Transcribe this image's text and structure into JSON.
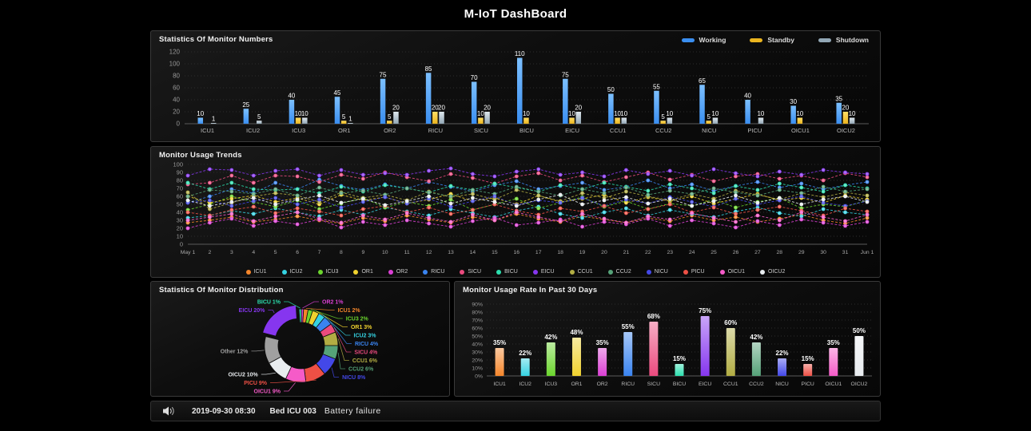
{
  "page_title": "M-IoT DashBoard",
  "chart_data": [
    {
      "type": "bar",
      "title": "Statistics Of Monitor Numbers",
      "ylim": [
        0,
        120
      ],
      "y_ticks": [
        0,
        20,
        40,
        60,
        80,
        100,
        120
      ],
      "grid": true,
      "legend_position": "top-right",
      "categories": [
        "ICU1",
        "ICU2",
        "ICU3",
        "OR1",
        "OR2",
        "RICU",
        "SICU",
        "BICU",
        "EICU",
        "CCU1",
        "CCU2",
        "NICU",
        "PICU",
        "OICU1",
        "OICU2"
      ],
      "series": [
        {
          "name": "Working",
          "color": "#3a8ef0",
          "color_light": "#7cc0ff",
          "values": [
            10,
            25,
            40,
            45,
            75,
            85,
            70,
            110,
            75,
            50,
            55,
            65,
            40,
            30,
            35
          ]
        },
        {
          "name": "Standby",
          "color": "#eab41f",
          "color_light": "#ffdf66",
          "values": [
            0,
            0,
            10,
            5,
            5,
            20,
            10,
            10,
            10,
            10,
            5,
            5,
            0,
            10,
            20
          ]
        },
        {
          "name": "Shutdown",
          "color": "#92a7b5",
          "color_light": "#dfe8ee",
          "values": [
            1,
            5,
            10,
            1,
            20,
            20,
            20,
            0,
            20,
            10,
            10,
            10,
            10,
            0,
            10
          ]
        }
      ]
    },
    {
      "type": "line",
      "title": "Monitor Usage Trends",
      "ylim": [
        0,
        100
      ],
      "y_ticks": [
        0,
        10,
        20,
        30,
        40,
        50,
        60,
        70,
        80,
        90,
        100
      ],
      "grid": true,
      "legend_position": "bottom",
      "x_labels": [
        "May 1",
        "2",
        "3",
        "4",
        "5",
        "6",
        "7",
        "8",
        "9",
        "10",
        "11",
        "12",
        "13",
        "14",
        "15",
        "16",
        "17",
        "18",
        "19",
        "20",
        "21",
        "22",
        "23",
        "24",
        "25",
        "26",
        "27",
        "28",
        "29",
        "30",
        "31",
        "Jun 1"
      ],
      "series": [
        {
          "name": "ICU1",
          "color": "#f5862b",
          "values": [
            27,
            30,
            34,
            28,
            31,
            35,
            30,
            26,
            33,
            29,
            36,
            31,
            27,
            34,
            30,
            38,
            32,
            28,
            35,
            31,
            27,
            33,
            29,
            36,
            30,
            34,
            28,
            32,
            37,
            30,
            26,
            33
          ]
        },
        {
          "name": "ICU2",
          "color": "#35d2e2",
          "values": [
            33,
            36,
            42,
            38,
            45,
            40,
            35,
            43,
            37,
            46,
            41,
            36,
            44,
            39,
            34,
            42,
            47,
            38,
            33,
            40,
            45,
            36,
            43,
            38,
            34,
            41,
            46,
            39,
            35,
            44,
            40,
            37
          ]
        },
        {
          "name": "ICU3",
          "color": "#6bd52d",
          "values": [
            43,
            50,
            60,
            53,
            47,
            55,
            44,
            51,
            58,
            46,
            53,
            48,
            56,
            43,
            50,
            57,
            45,
            52,
            59,
            47,
            54,
            44,
            51,
            48,
            56,
            46,
            53,
            58,
            45,
            50,
            47,
            55
          ]
        },
        {
          "name": "OR1",
          "color": "#f0d22e",
          "values": [
            60,
            52,
            57,
            61,
            53,
            58,
            50,
            62,
            55,
            59,
            51,
            56,
            63,
            54,
            58,
            50,
            61,
            53,
            57,
            62,
            52,
            59,
            54,
            60,
            51,
            57,
            63,
            55,
            58,
            52,
            61,
            56
          ]
        },
        {
          "name": "OR2",
          "color": "#db3fd4",
          "values": [
            20,
            27,
            32,
            23,
            29,
            25,
            31,
            21,
            28,
            24,
            30,
            26,
            22,
            29,
            33,
            24,
            27,
            31,
            22,
            28,
            25,
            32,
            23,
            30,
            26,
            21,
            29,
            24,
            31,
            27,
            23,
            28
          ]
        },
        {
          "name": "RICU",
          "color": "#3a84f0",
          "values": [
            52,
            60,
            69,
            64,
            77,
            69,
            81,
            73,
            68,
            75,
            70,
            78,
            72,
            66,
            74,
            79,
            69,
            73,
            77,
            68,
            72,
            80,
            70,
            75,
            67,
            73,
            78,
            71,
            76,
            69,
            74,
            78
          ]
        },
        {
          "name": "SICU",
          "color": "#ea4a7e",
          "values": [
            75,
            77,
            86,
            77,
            86,
            85,
            78,
            87,
            82,
            90,
            84,
            79,
            88,
            83,
            76,
            85,
            89,
            80,
            86,
            78,
            84,
            90,
            81,
            87,
            79,
            85,
            88,
            82,
            86,
            80,
            89,
            84
          ]
        },
        {
          "name": "BICU",
          "color": "#2cdfae",
          "values": [
            77,
            69,
            77,
            69,
            68,
            69,
            64,
            72,
            66,
            74,
            70,
            65,
            73,
            68,
            76,
            71,
            66,
            74,
            69,
            77,
            72,
            67,
            75,
            70,
            64,
            73,
            68,
            76,
            71,
            66,
            74,
            70
          ]
        },
        {
          "name": "EICU",
          "color": "#8636ef",
          "values": [
            86,
            94,
            93,
            86,
            92,
            94,
            86,
            93,
            87,
            89,
            87,
            92,
            95,
            88,
            85,
            91,
            94,
            87,
            90,
            85,
            93,
            88,
            92,
            86,
            94,
            89,
            85,
            91,
            87,
            93,
            90,
            88
          ]
        },
        {
          "name": "CCU1",
          "color": "#b2ad43",
          "values": [
            65,
            44,
            52,
            60,
            64,
            61,
            53,
            65,
            58,
            62,
            55,
            66,
            59,
            63,
            56,
            68,
            61,
            54,
            64,
            58,
            66,
            60,
            55,
            63,
            57,
            67,
            62,
            56,
            64,
            59,
            65,
            61
          ]
        },
        {
          "name": "CCU2",
          "color": "#55a278",
          "values": [
            60,
            68,
            66,
            63,
            69,
            61,
            71,
            64,
            67,
            62,
            70,
            65,
            60,
            68,
            63,
            72,
            66,
            61,
            69,
            64,
            71,
            62,
            67,
            63,
            70,
            65,
            61,
            68,
            64,
            72,
            66,
            69
          ]
        },
        {
          "name": "NICU",
          "color": "#4348e8",
          "values": [
            52,
            55,
            48,
            54,
            58,
            50,
            56,
            46,
            53,
            59,
            51,
            57,
            47,
            54,
            60,
            49,
            55,
            52,
            58,
            48,
            56,
            51,
            59,
            53,
            47,
            57,
            50,
            55,
            60,
            52,
            48,
            54
          ]
        },
        {
          "name": "PICU",
          "color": "#ee5045",
          "values": [
            40,
            36,
            43,
            47,
            39,
            45,
            41,
            36,
            44,
            48,
            40,
            46,
            38,
            43,
            50,
            42,
            37,
            45,
            41,
            48,
            39,
            44,
            50,
            40,
            46,
            38,
            43,
            47,
            42,
            36,
            45,
            41
          ]
        },
        {
          "name": "OICU1",
          "color": "#f55bc8",
          "values": [
            30,
            34,
            38,
            29,
            35,
            40,
            32,
            27,
            36,
            31,
            39,
            33,
            28,
            37,
            30,
            40,
            34,
            29,
            38,
            32,
            27,
            35,
            31,
            39,
            33,
            28,
            36,
            30,
            40,
            34,
            29,
            37
          ]
        },
        {
          "name": "OICU2",
          "color": "#e8ecef",
          "values": [
            55,
            48,
            53,
            58,
            50,
            56,
            61,
            52,
            57,
            49,
            54,
            60,
            51,
            58,
            53,
            48,
            56,
            62,
            50,
            55,
            59,
            51,
            57,
            48,
            54,
            61,
            52,
            58,
            50,
            56,
            60,
            53
          ]
        }
      ]
    },
    {
      "type": "pie",
      "title": "Statistics Of Monitor Distribution",
      "donut": true,
      "slices": [
        {
          "label": "OR2",
          "value": 1,
          "color": "#db3fd4",
          "side": "right"
        },
        {
          "label": "ICU1",
          "value": 2,
          "color": "#f5862b",
          "side": "right"
        },
        {
          "label": "ICU3",
          "value": 2,
          "color": "#6bd52d",
          "side": "right"
        },
        {
          "label": "OR1",
          "value": 3,
          "color": "#f0d22e",
          "side": "right"
        },
        {
          "label": "ICU2",
          "value": 3,
          "color": "#35d2e2",
          "side": "right"
        },
        {
          "label": "RICU",
          "value": 4,
          "color": "#3a84f0",
          "side": "right"
        },
        {
          "label": "SICU",
          "value": 4,
          "color": "#ea4a7e",
          "side": "right"
        },
        {
          "label": "CCU1",
          "value": 6,
          "color": "#b2ad43",
          "side": "right"
        },
        {
          "label": "CCU2",
          "value": 6,
          "color": "#55a278",
          "side": "right"
        },
        {
          "label": "NICU",
          "value": 8,
          "color": "#4348e8",
          "side": "right"
        },
        {
          "label": "PICU",
          "value": 9,
          "color": "#ee5045",
          "side": "left"
        },
        {
          "label": "OICU1",
          "value": 9,
          "color": "#f55bc8",
          "side": "left"
        },
        {
          "label": "OICU2",
          "value": 10,
          "color": "#e8ecef",
          "side": "left"
        },
        {
          "label": "Other",
          "value": 12,
          "color": "#a0a0a0",
          "side": "left"
        },
        {
          "label": "EICU",
          "value": 20,
          "color": "#8636ef",
          "side": "left",
          "selected": true
        },
        {
          "label": "BICU",
          "value": 1,
          "color": "#2cdfae",
          "side": "left"
        }
      ]
    },
    {
      "type": "bar",
      "title": "Monitor Usage Rate In Past 30 Days",
      "unit": "%",
      "ylim": [
        0,
        90
      ],
      "y_ticks": [
        0,
        10,
        20,
        30,
        40,
        50,
        60,
        70,
        80,
        90
      ],
      "grid": true,
      "categories": [
        "ICU1",
        "ICU2",
        "ICU3",
        "OR1",
        "OR2",
        "RICU",
        "SICU",
        "BICU",
        "EICU",
        "CCU1",
        "CCU2",
        "NICU",
        "PICU",
        "OICU1",
        "OICU2"
      ],
      "values": [
        35,
        22,
        42,
        48,
        35,
        55,
        68,
        15,
        75,
        60,
        42,
        22,
        15,
        35,
        50
      ],
      "colors": [
        "#f5862b",
        "#35d2e2",
        "#6bd52d",
        "#f0d22e",
        "#db3fd4",
        "#3a84f0",
        "#ea4a7e",
        "#2cdfae",
        "#8636ef",
        "#b2ad43",
        "#55a278",
        "#4348e8",
        "#ee5045",
        "#f55bc8",
        "#e8ecef"
      ]
    }
  ],
  "status_bar": {
    "icon": "speaker-icon",
    "time": "2019-09-30 08:30",
    "bed": "Bed ICU 003",
    "message": "Battery failure"
  }
}
